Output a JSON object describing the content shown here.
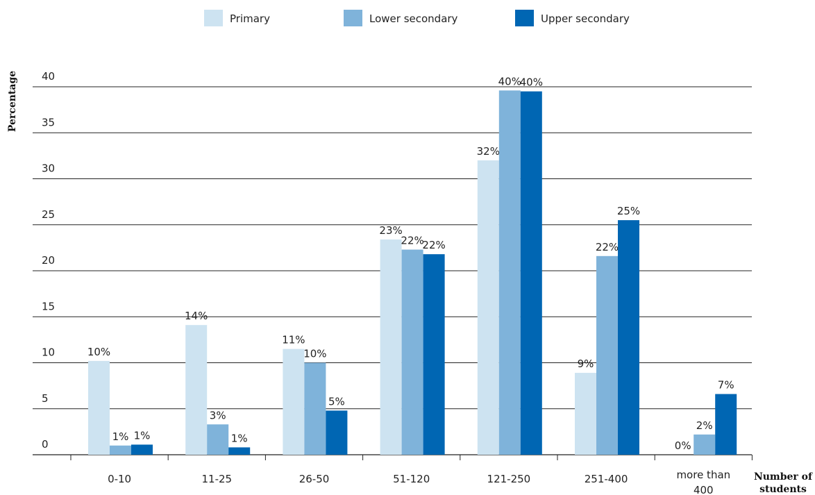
{
  "chart_data": {
    "type": "bar",
    "categories": [
      "0-10",
      "11-25",
      "26-50",
      "51-120",
      "121-250",
      "251-400",
      "more than 400"
    ],
    "category_lines": [
      [
        "0-10"
      ],
      [
        "11-25"
      ],
      [
        "26-50"
      ],
      [
        "51-120"
      ],
      [
        "121-250"
      ],
      [
        "251-400"
      ],
      [
        "more than",
        "400"
      ]
    ],
    "series": [
      {
        "name": "Primary",
        "color": "#cde3f1",
        "values": [
          10.2,
          14.1,
          11.5,
          23.4,
          32.0,
          8.9,
          0
        ],
        "labels": [
          "10%",
          "14%",
          "11%",
          "23%",
          "32%",
          "9%",
          "0%"
        ]
      },
      {
        "name": "Lower secondary",
        "color": "#7fb3da",
        "values": [
          1.0,
          3.3,
          10.0,
          22.3,
          39.6,
          21.6,
          2.2
        ],
        "labels": [
          "1%",
          "3%",
          "10%",
          "22%",
          "40%",
          "22%",
          "2%"
        ]
      },
      {
        "name": "Upper secondary",
        "color": "#0066b3",
        "values": [
          1.1,
          0.8,
          4.8,
          21.8,
          39.5,
          25.5,
          6.6
        ],
        "labels": [
          "1%",
          "1%",
          "5%",
          "22%",
          "40%",
          "25%",
          "7%"
        ]
      }
    ],
    "ylabel": "Percentage",
    "xlabel_lines": [
      "Number of",
      "students"
    ],
    "ylim": [
      0,
      40
    ],
    "yticks": [
      0,
      5,
      10,
      15,
      20,
      25,
      30,
      35,
      40
    ],
    "grid": true,
    "legend_position": "top-center"
  }
}
